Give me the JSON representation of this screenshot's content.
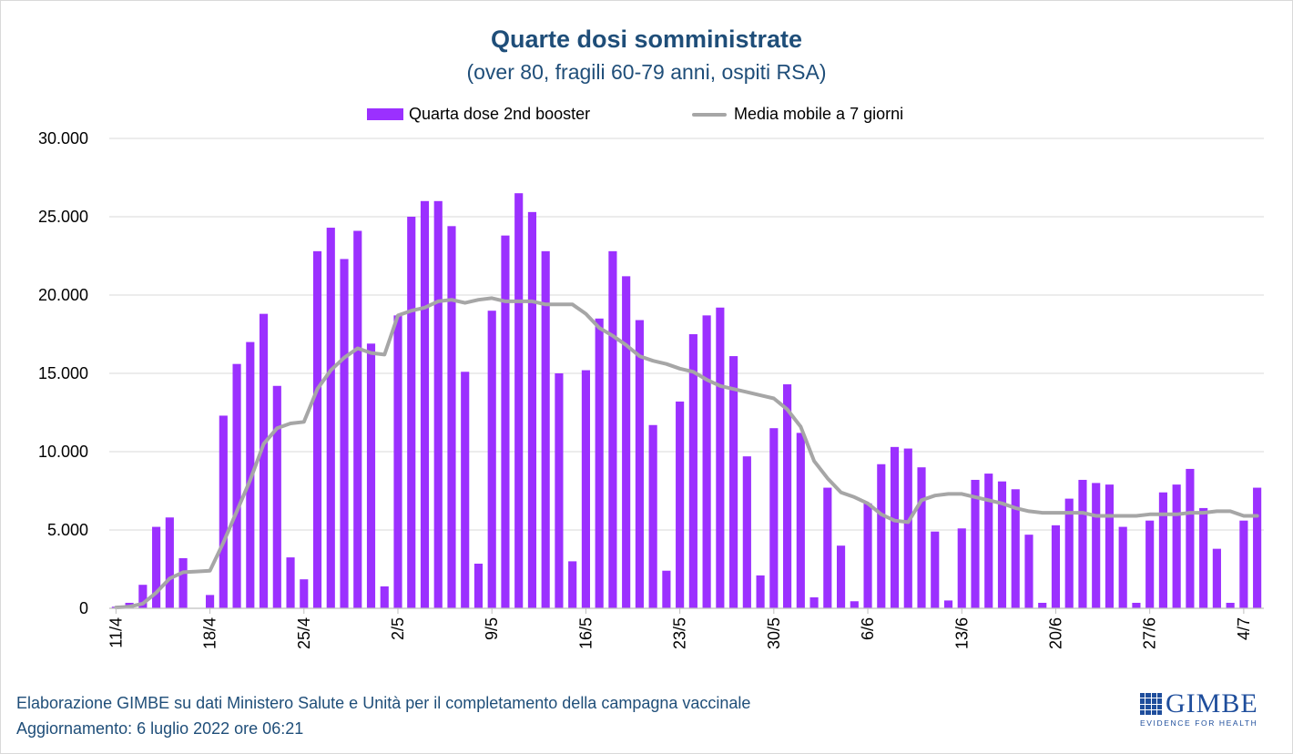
{
  "chart_data": {
    "type": "bar",
    "title": "Quarte dosi somministrate",
    "subtitle": "(over 80, fragili 60-79 anni, ospiti RSA)",
    "ylim": [
      0,
      30000
    ],
    "y_ticks": [
      "0",
      "5.000",
      "10.000",
      "15.000",
      "20.000",
      "25.000",
      "30.000"
    ],
    "grid": true,
    "legend_position": "top-center",
    "x": [
      "11/4",
      "12/4",
      "13/4",
      "14/4",
      "15/4",
      "16/4",
      "17/4",
      "18/4",
      "19/4",
      "20/4",
      "21/4",
      "22/4",
      "23/4",
      "24/4",
      "25/4",
      "26/4",
      "27/4",
      "28/4",
      "29/4",
      "30/4",
      "1/5",
      "2/5",
      "3/5",
      "4/5",
      "5/5",
      "6/5",
      "7/5",
      "8/5",
      "9/5",
      "10/5",
      "11/5",
      "12/5",
      "13/5",
      "14/5",
      "15/5",
      "16/5",
      "17/5",
      "18/5",
      "19/5",
      "20/5",
      "21/5",
      "22/5",
      "23/5",
      "24/5",
      "25/5",
      "26/5",
      "27/5",
      "28/5",
      "29/5",
      "30/5",
      "31/5",
      "1/6",
      "2/6",
      "3/6",
      "4/6",
      "5/6",
      "6/6",
      "7/6",
      "8/6",
      "9/6",
      "10/6",
      "11/6",
      "12/6",
      "13/6",
      "14/6",
      "15/6",
      "16/6",
      "17/6",
      "18/6",
      "19/6",
      "20/6",
      "21/6",
      "22/6",
      "23/6",
      "24/6",
      "25/6",
      "26/6",
      "27/6",
      "28/6",
      "29/6",
      "30/6",
      "1/7",
      "2/7",
      "3/7",
      "4/7",
      "5/7"
    ],
    "x_tick_labels": [
      "11/4",
      "18/4",
      "25/4",
      "2/5",
      "9/5",
      "16/5",
      "23/5",
      "30/5",
      "6/6",
      "13/6",
      "20/6",
      "27/6",
      "4/7"
    ],
    "series": [
      {
        "name": "Quarta dose 2nd booster",
        "kind": "bar",
        "color": "#9b30ff",
        "values": [
          100,
          350,
          1500,
          5200,
          5800,
          3200,
          0,
          850,
          12300,
          15600,
          17000,
          18800,
          14200,
          3250,
          1850,
          22800,
          24300,
          22300,
          24100,
          16900,
          1400,
          18700,
          25000,
          26000,
          26000,
          24400,
          15100,
          2850,
          19000,
          23800,
          26500,
          25300,
          22800,
          15000,
          3000,
          15200,
          18500,
          22800,
          21200,
          18400,
          11700,
          2400,
          13200,
          17500,
          18700,
          19200,
          16100,
          9700,
          2100,
          11500,
          14300,
          11200,
          700,
          7700,
          4000,
          450,
          6700,
          9200,
          10300,
          10200,
          9000,
          4900,
          500,
          5100,
          8200,
          8600,
          8100,
          7600,
          4700,
          350,
          5300,
          7000,
          8200,
          8000,
          7900,
          5200,
          350,
          5600,
          7400,
          7900,
          8900,
          6400,
          3800,
          350,
          5600,
          7700
        ]
      },
      {
        "name": "Media mobile a 7 giorni",
        "kind": "line",
        "color": "#a6a6a6",
        "values": [
          50,
          100,
          300,
          1000,
          1900,
          2300,
          2350,
          2400,
          4200,
          6200,
          8200,
          10500,
          11500,
          11800,
          11900,
          14000,
          15200,
          16000,
          16600,
          16300,
          16200,
          18700,
          19000,
          19200,
          19600,
          19700,
          19500,
          19700,
          19800,
          19600,
          19600,
          19600,
          19400,
          19400,
          19400,
          18800,
          17900,
          17400,
          16800,
          16100,
          15800,
          15600,
          15300,
          15100,
          14600,
          14200,
          14000,
          13800,
          13600,
          13400,
          12700,
          11600,
          9400,
          8300,
          7400,
          7100,
          6700,
          6000,
          5600,
          5500,
          6900,
          7200,
          7300,
          7300,
          7100,
          6900,
          6700,
          6400,
          6200,
          6100,
          6100,
          6100,
          6100,
          5900,
          5900,
          5900,
          5900,
          6000,
          6000,
          6000,
          6100,
          6100,
          6200,
          6200,
          5900,
          5900
        ]
      }
    ]
  },
  "footer": {
    "line1": "Elaborazione GIMBE su dati Ministero Salute e Unità per il completamento della campagna vaccinale",
    "line2": "Aggiornamento: 6 luglio 2022 ore 06:21"
  },
  "logo": {
    "name": "GIMBE",
    "tagline": "EVIDENCE FOR HEALTH"
  }
}
